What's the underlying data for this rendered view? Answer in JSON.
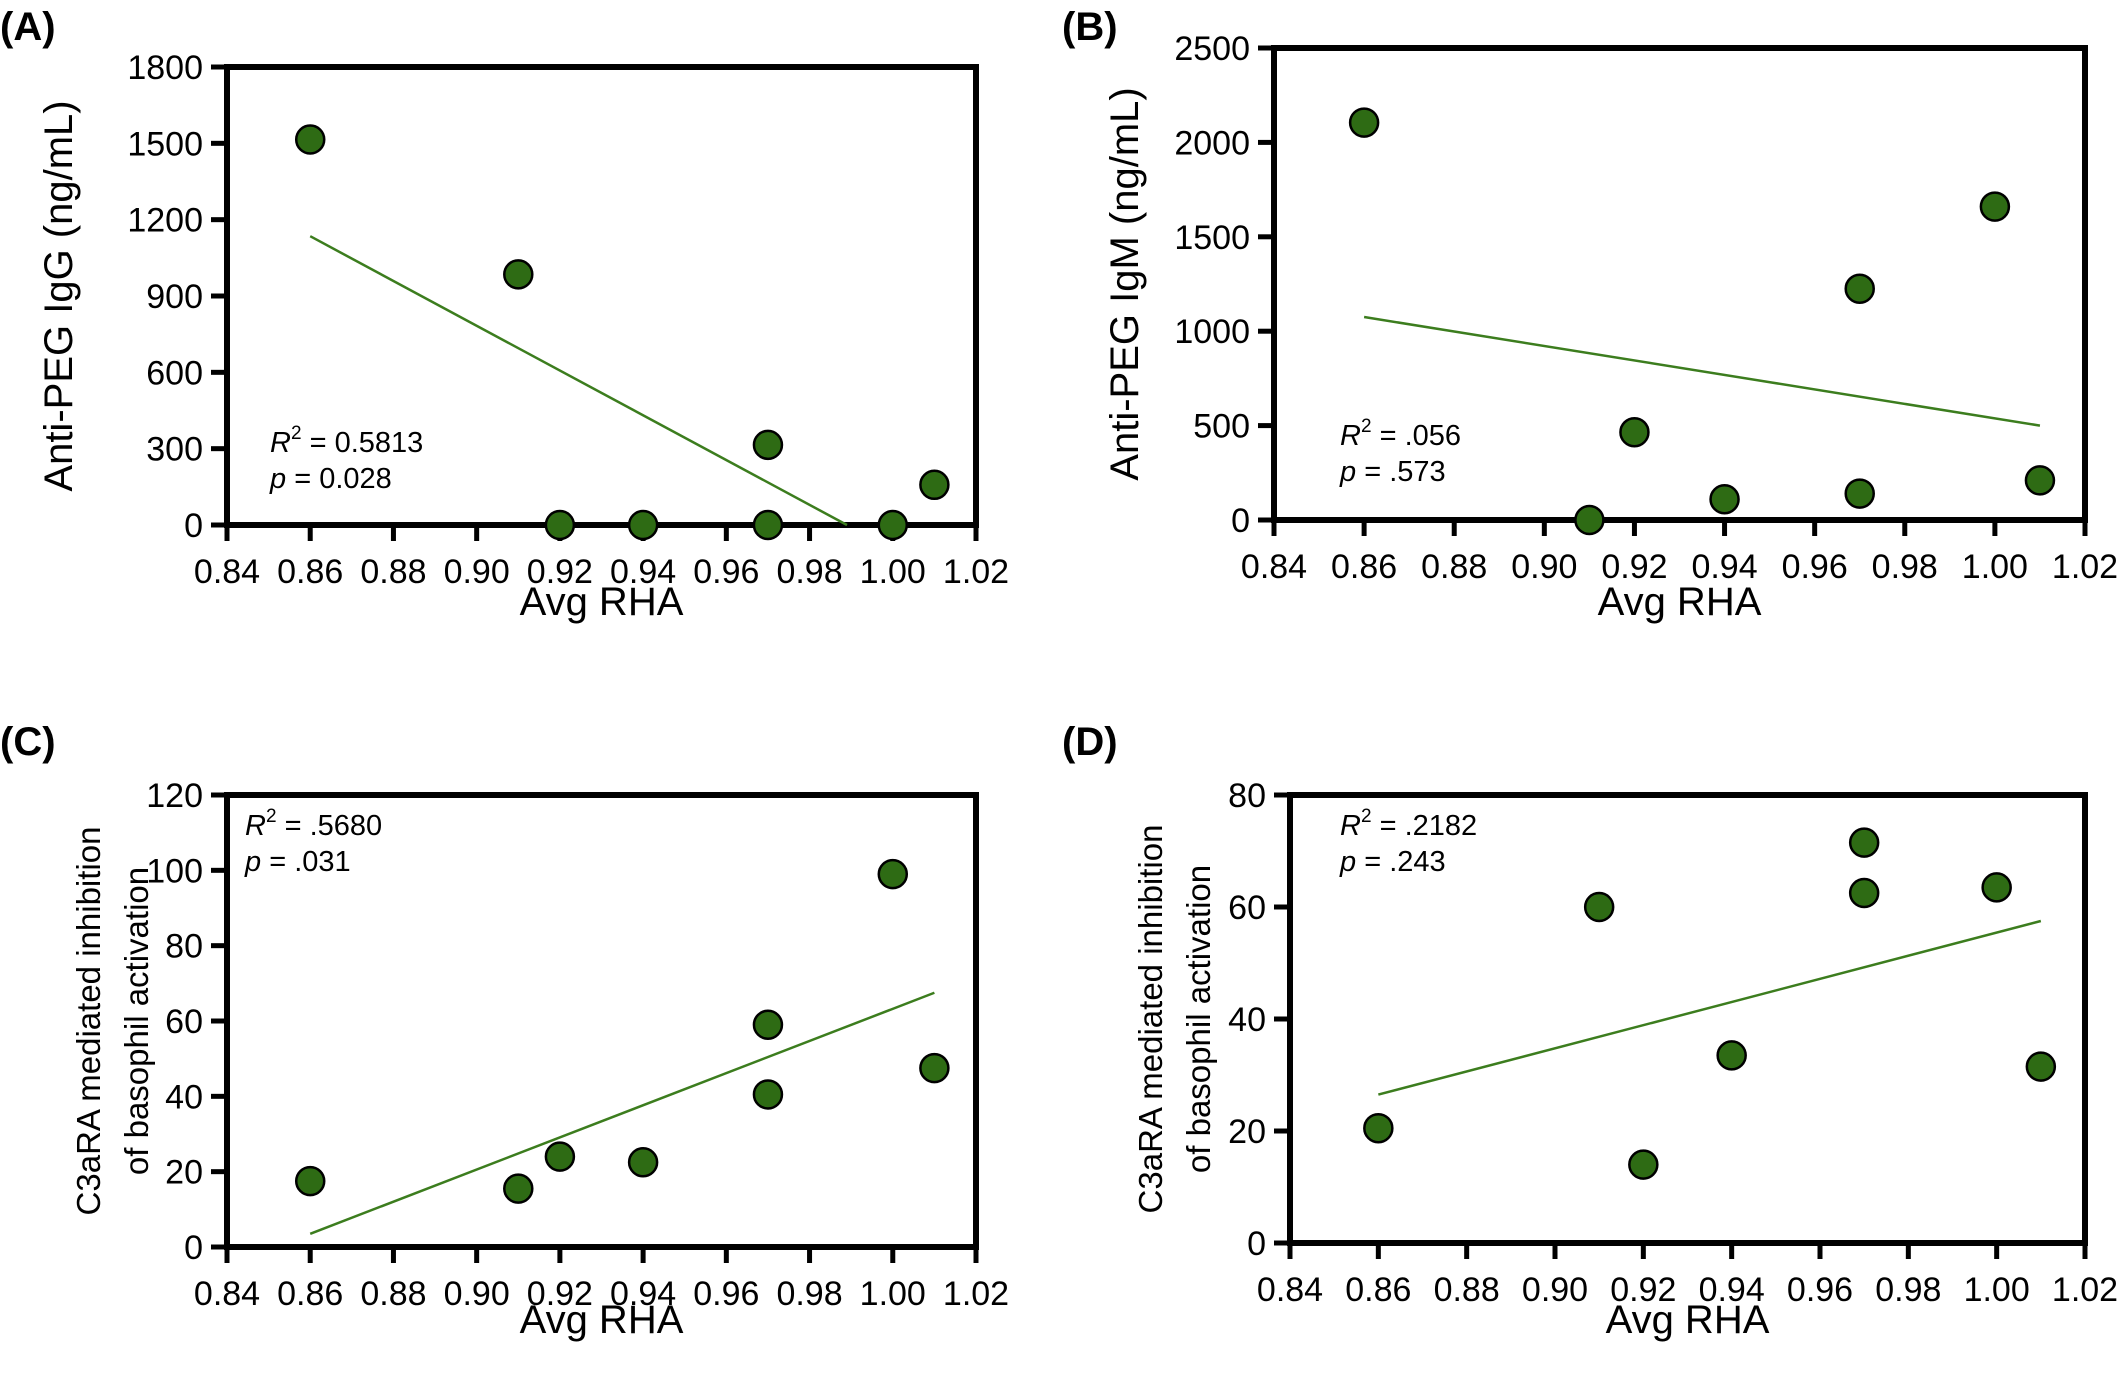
{
  "colors": {
    "point_fill": "#2e6b14",
    "fit_line": "#3c7d1e",
    "axis": "#000000"
  },
  "chart_data": [
    {
      "panel": "(A)",
      "type": "scatter",
      "xlabel": "Avg RHA",
      "ylabel": "Anti-PEG IgG (ng/mL)",
      "xlim": [
        0.84,
        1.02
      ],
      "ylim": [
        0,
        1800
      ],
      "xticks": [
        "0.84",
        "0.86",
        "0.88",
        "0.90",
        "0.92",
        "0.94",
        "0.96",
        "0.98",
        "1.00",
        "1.02"
      ],
      "yticks": [
        "0",
        "300",
        "600",
        "900",
        "1200",
        "1500",
        "1800"
      ],
      "x": [
        0.86,
        0.91,
        0.92,
        0.94,
        0.97,
        0.97,
        1.0,
        1.01
      ],
      "y": [
        1515,
        985,
        0,
        0,
        315,
        0,
        0,
        158
      ],
      "regression": {
        "x": [
          0.86,
          0.989
        ],
        "y": [
          1135,
          0
        ]
      },
      "stats": {
        "r2_prefix": "R",
        "r2_sup": "2",
        "r2_value": " = 0.5813",
        "p_prefix": "p",
        "p_value": " = 0.028"
      },
      "stats_position": "bottom-left",
      "grid": false
    },
    {
      "panel": "(B)",
      "type": "scatter",
      "xlabel": "Avg RHA",
      "ylabel": "Anti-PEG IgM (ng/mL)",
      "xlim": [
        0.84,
        1.02
      ],
      "ylim": [
        0,
        2500
      ],
      "xticks": [
        "0.84",
        "0.86",
        "0.88",
        "0.90",
        "0.92",
        "0.94",
        "0.96",
        "0.98",
        "1.00",
        "1.02"
      ],
      "yticks": [
        "0",
        "500",
        "1000",
        "1500",
        "2000",
        "2500"
      ],
      "x": [
        0.86,
        0.91,
        0.92,
        0.94,
        0.97,
        0.97,
        1.0,
        1.01
      ],
      "y": [
        2105,
        0,
        465,
        110,
        1225,
        140,
        1660,
        210
      ],
      "regression": {
        "x": [
          0.86,
          1.01
        ],
        "y": [
          1075,
          500
        ]
      },
      "stats": {
        "r2_prefix": "R",
        "r2_sup": "2",
        "r2_value": " = .056",
        "p_prefix": "p",
        "p_value": " = .573"
      },
      "stats_position": "bottom-left",
      "grid": false
    },
    {
      "panel": "(C)",
      "type": "scatter",
      "xlabel": "Avg RHA",
      "ylabel": "C3aRA mediated inhibition",
      "ylabel2": "of basophil activation",
      "xlim": [
        0.84,
        1.02
      ],
      "ylim": [
        0,
        120
      ],
      "xticks": [
        "0.84",
        "0.86",
        "0.88",
        "0.90",
        "0.92",
        "0.94",
        "0.96",
        "0.98",
        "1.00",
        "1.02"
      ],
      "yticks": [
        "0",
        "20",
        "40",
        "60",
        "80",
        "100",
        "120"
      ],
      "x": [
        0.86,
        0.91,
        0.92,
        0.94,
        0.97,
        0.97,
        1.0,
        1.01
      ],
      "y": [
        17.5,
        15.5,
        24,
        22.5,
        59,
        40.5,
        99,
        47.5
      ],
      "regression": {
        "x": [
          0.86,
          1.01
        ],
        "y": [
          3.5,
          67.5
        ]
      },
      "stats": {
        "r2_prefix": "R",
        "r2_sup": "2",
        "r2_value": " = .5680",
        "p_prefix": "p",
        "p_value": " = .031"
      },
      "stats_position": "top-left",
      "grid": false
    },
    {
      "panel": "(D)",
      "type": "scatter",
      "xlabel": "Avg RHA",
      "ylabel": "C3aRA mediated inhibition",
      "ylabel2": "of basophil activation",
      "xlim": [
        0.84,
        1.02
      ],
      "ylim": [
        0,
        80
      ],
      "xticks": [
        "0.84",
        "0.86",
        "0.88",
        "0.90",
        "0.92",
        "0.94",
        "0.96",
        "0.98",
        "1.00",
        "1.02"
      ],
      "yticks": [
        "0",
        "20",
        "40",
        "60",
        "80"
      ],
      "x": [
        0.86,
        0.91,
        0.92,
        0.94,
        0.97,
        0.97,
        1.0,
        1.01
      ],
      "y": [
        20.5,
        60,
        14,
        33.5,
        71.5,
        62.5,
        63.5,
        31.5
      ],
      "regression": {
        "x": [
          0.86,
          1.01
        ],
        "y": [
          26.5,
          57.5
        ]
      },
      "stats": {
        "r2_prefix": "R",
        "r2_sup": "2",
        "r2_value": " = .2182",
        "p_prefix": "p",
        "p_value": " = .243"
      },
      "stats_position": "top-left",
      "grid": false
    }
  ]
}
